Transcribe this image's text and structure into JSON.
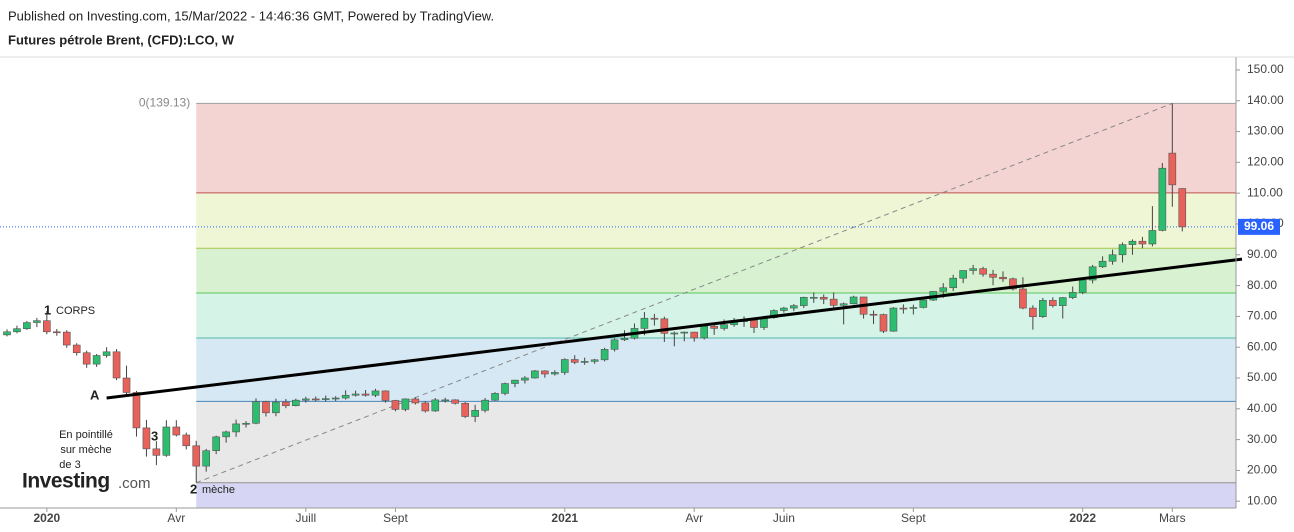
{
  "header": {
    "published": "Published on Investing.com, 15/Mar/2022 - 14:46:36 GMT, Powered by TradingView.",
    "instrument": "Futures pétrole Brent, (CFD):LCO, W"
  },
  "logo": {
    "name": "Investing",
    "suffix": ".com"
  },
  "chart_data": {
    "type": "candlestick",
    "up_color": "#2dbd6e",
    "down_color": "#e8615a",
    "categories": [
      null,
      null,
      null,
      null,
      "2020",
      null,
      null,
      null,
      null,
      null,
      null,
      null,
      null,
      null,
      null,
      null,
      null,
      "Avr",
      null,
      null,
      null,
      null,
      null,
      null,
      null,
      null,
      null,
      null,
      null,
      null,
      "Juill",
      null,
      null,
      null,
      null,
      null,
      null,
      null,
      null,
      "Sept",
      null,
      null,
      null,
      null,
      null,
      null,
      null,
      null,
      null,
      null,
      null,
      null,
      null,
      null,
      null,
      null,
      "2021",
      null,
      null,
      null,
      null,
      null,
      null,
      null,
      null,
      null,
      null,
      null,
      null,
      "Avr",
      null,
      null,
      null,
      null,
      null,
      null,
      null,
      null,
      "Juin",
      null,
      null,
      null,
      null,
      null,
      null,
      null,
      null,
      null,
      null,
      null,
      null,
      "Sept",
      null,
      null,
      null,
      null,
      null,
      null,
      null,
      null,
      null,
      null,
      null,
      null,
      null,
      null,
      null,
      null,
      "2022",
      null,
      null,
      null,
      null,
      null,
      null,
      null,
      null,
      "Mars",
      null
    ],
    "open": [
      64,
      65,
      66,
      68,
      68.6,
      65,
      64.9,
      60.7,
      58.2,
      54.5,
      57.3,
      58.5,
      50,
      45.3,
      33.8,
      27,
      24.9,
      34.1,
      31.5,
      28,
      21.4,
      26.4,
      30.9,
      32.5,
      35.1,
      35.3,
      42.3,
      38.7,
      42.2,
      41,
      42.8,
      43.2,
      43.1,
      43.3,
      43.5,
      44.4,
      44.8,
      44.4,
      45.8,
      42.7,
      39.8,
      43.2,
      41.9,
      39.3,
      42.9,
      42.9,
      41.8,
      37.5,
      39.5,
      42.8,
      45,
      48.2,
      49.3,
      50,
      52.3,
      51.3,
      51.8,
      56,
      55.1,
      55.4,
      55.9,
      59.3,
      62.4,
      62.9,
      66.1,
      69.4,
      69.2,
      64.5,
      64.6,
      64.9,
      63,
      66.8,
      66.1,
      67.3,
      68.3,
      68.7,
      66.4,
      69.6,
      71.9,
      72.7,
      73.5,
      76.2,
      76.2,
      75.6,
      73.6,
      74.1,
      76.3,
      70.7,
      70.6,
      65.2,
      72.7,
      72.6,
      72.9,
      75.3,
      78.1,
      79.3,
      82.4,
      84.9,
      85.5,
      83.7,
      82.7,
      82.2,
      78.9,
      72.7,
      69.9,
      75.2,
      73.5,
      76.1,
      77.8,
      81.8,
      86.1,
      87.9,
      90,
      93.3,
      94.4,
      93.5,
      97.9,
      123,
      111.5
    ],
    "high": [
      65.8,
      67,
      68.5,
      69.5,
      71.7,
      65.9,
      65.5,
      61.3,
      58.9,
      57.8,
      60,
      59.4,
      54,
      45.8,
      36.4,
      29.5,
      36.3,
      36.3,
      32.3,
      29.6,
      27,
      31.3,
      32.9,
      36.5,
      36,
      43.4,
      42.6,
      43.3,
      43.2,
      43.3,
      43.9,
      44,
      44.3,
      44.1,
      46,
      45.9,
      46.1,
      46.5,
      46,
      42.9,
      43.4,
      43.7,
      42.5,
      43.5,
      43.6,
      43.1,
      42.2,
      41.3,
      43.5,
      45.4,
      48.5,
      49.4,
      50.6,
      52.6,
      52.5,
      52.5,
      56.4,
      57.4,
      56.6,
      56.2,
      59.8,
      62.8,
      65.5,
      67.7,
      71.4,
      70.8,
      69.9,
      65.1,
      65.1,
      65,
      67.1,
      67.6,
      69,
      69.5,
      70,
      69.2,
      69.7,
      72.3,
      73.1,
      74,
      76.4,
      77.8,
      77.1,
      77.8,
      74.5,
      76.7,
      76.3,
      71.9,
      70.9,
      73,
      73.9,
      73.8,
      76.3,
      78.2,
      80.8,
      83.5,
      84.9,
      86.7,
      86.1,
      85.1,
      84.6,
      82.6,
      82.7,
      73.6,
      76,
      76.2,
      76.3,
      79.7,
      82.6,
      86.7,
      89.5,
      91.7,
      94,
      95,
      95.8,
      105.8,
      119.8,
      139.13,
      111.6
    ],
    "low": [
      63.5,
      64.5,
      65.6,
      66.5,
      64.2,
      63.7,
      59.8,
      57.3,
      53.3,
      53.6,
      56.6,
      49.3,
      44.3,
      31,
      24.5,
      21.7,
      24.4,
      31,
      26.8,
      16,
      19.6,
      25.3,
      29,
      30.9,
      33.9,
      35,
      37.5,
      37.6,
      40.2,
      40.8,
      42,
      42.4,
      42.3,
      42.5,
      43,
      44,
      44,
      43.8,
      42,
      39.2,
      39.2,
      41.4,
      38.8,
      39,
      42,
      41.4,
      37,
      35.7,
      38.8,
      42.6,
      44.4,
      47,
      48.2,
      49.8,
      50.1,
      50.8,
      51,
      54.5,
      54.3,
      54.6,
      55.4,
      58.6,
      62,
      62.5,
      63.9,
      67,
      61.7,
      60.3,
      61.9,
      61.8,
      62.5,
      64,
      65.4,
      66.6,
      66.6,
      64.6,
      65.6,
      69.2,
      71.2,
      71.7,
      72.7,
      74.4,
      74,
      72.8,
      67.4,
      73.9,
      69.3,
      67.5,
      64.6,
      65,
      70.9,
      70.6,
      72.6,
      75,
      76,
      78.2,
      80.8,
      83.6,
      82.9,
      80.1,
      81.2,
      78.4,
      72.3,
      65.7,
      69.5,
      72.9,
      69.3,
      75.6,
      77.2,
      80.7,
      85.7,
      86.8,
      87.5,
      90,
      92.1,
      92.7,
      97.6,
      105.6,
      97.6
    ],
    "close": [
      65,
      66,
      68,
      68.6,
      65,
      64.9,
      60.7,
      58.2,
      54.5,
      57.3,
      58.5,
      50,
      45.3,
      33.8,
      27,
      24.9,
      34.1,
      31.5,
      28,
      21.4,
      26.4,
      30.9,
      32.5,
      35.1,
      35.3,
      42.3,
      38.7,
      42.2,
      41,
      42.8,
      43.2,
      43.1,
      43.3,
      43.5,
      44.4,
      44.8,
      44.4,
      45.8,
      42.7,
      39.8,
      43.2,
      41.9,
      39.3,
      42.9,
      42.9,
      41.8,
      37.5,
      39.5,
      42.8,
      45,
      48.2,
      49.3,
      50,
      52.3,
      51.3,
      51.8,
      56,
      55.1,
      55.4,
      55.9,
      59.3,
      62.4,
      62.9,
      66.1,
      69.4,
      69.2,
      64.5,
      64.6,
      64.9,
      63,
      66.8,
      66.1,
      67.3,
      68.3,
      68.7,
      66.4,
      69.6,
      71.9,
      72.7,
      73.5,
      76.2,
      76.2,
      75.6,
      73.6,
      74.1,
      76.3,
      70.7,
      70.6,
      65.2,
      72.7,
      72.6,
      72.9,
      75.3,
      78.1,
      79.3,
      82.4,
      84.9,
      85.5,
      83.7,
      82.7,
      82.2,
      78.9,
      72.7,
      69.9,
      75.2,
      73.5,
      76.1,
      77.8,
      81.8,
      86.1,
      87.9,
      90,
      93.3,
      94.4,
      93.5,
      97.9,
      118.1,
      112.7,
      99.06
    ],
    "ylim": [
      7.8,
      154.2
    ],
    "yticks": [
      {
        "value": 10,
        "label": "10.00"
      },
      {
        "value": 20,
        "label": "20.00"
      },
      {
        "value": 30,
        "label": "30.00"
      },
      {
        "value": 40,
        "label": "40.00"
      },
      {
        "value": 50,
        "label": "50.00"
      },
      {
        "value": 60,
        "label": "60.00"
      },
      {
        "value": 70,
        "label": "70.00"
      },
      {
        "value": 80,
        "label": "80.00"
      },
      {
        "value": 90,
        "label": "90.00"
      },
      {
        "value": 100,
        "label": "100.00"
      },
      {
        "value": 110,
        "label": "110.00"
      },
      {
        "value": 120,
        "label": "120.00"
      },
      {
        "value": 130,
        "label": "130.00"
      },
      {
        "value": 140,
        "label": "140.00"
      },
      {
        "value": 150,
        "label": "150.00"
      }
    ],
    "price_line_color": "#2962ff",
    "fib_start": 19,
    "fib_end": 117,
    "fib_levels": [
      {
        "value": 139.13,
        "label": "0(139.13)"
      },
      110.1,
      92.1,
      77.6,
      63,
      42.4,
      16
    ],
    "fib_line_colors": [
      "#a0a0a0",
      "#c0504d",
      "#a8c64a",
      "#58c858",
      "#52b8a8",
      "#4a86b8",
      "#909090"
    ],
    "fib_band_colors": [
      "#f4d4d2",
      "#eef6d6",
      "#d8f1d1",
      "#d6f3e8",
      "#d6e8f3",
      "#e8e8e8",
      "#d6d6f4"
    ],
    "trendline": {
      "x": [
        10,
        124
      ],
      "y": [
        43.5,
        88.6
      ]
    },
    "annotations": {
      "corps_num": "1",
      "corps": "CORPS",
      "a": "A",
      "three": "3",
      "note": [
        "En pointillé",
        "sur mèche",
        "de 3"
      ],
      "meche_num": "2",
      "meche": "mèche"
    }
  }
}
